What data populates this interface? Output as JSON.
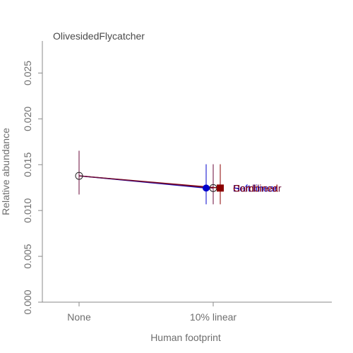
{
  "chart_data": {
    "type": "scatter",
    "title": "OlivesidedFlycatcher",
    "xlabel": "Human footprint",
    "ylabel": "Relative abundance",
    "categories": [
      "None",
      "10% linear"
    ],
    "ylim": [
      0,
      0.0285
    ],
    "yticks": [
      "0.000",
      "0.005",
      "0.010",
      "0.015",
      "0.020",
      "0.025"
    ],
    "series": [
      {
        "name": "Hard linear",
        "color": "#6a0a3a",
        "marker": "open-circle",
        "points": [
          {
            "category": "None",
            "y": 0.01378,
            "lo": 0.01175,
            "hi": 0.01652
          },
          {
            "category": "10% linear",
            "y": 0.01245,
            "lo": 0.01068,
            "hi": 0.01505,
            "offset": 0
          }
        ]
      },
      {
        "name": "Soft linear",
        "color": "#0000cc",
        "marker": "filled-circle",
        "points": [
          {
            "category": "10% linear",
            "y": 0.01245,
            "lo": 0.01068,
            "hi": 0.01505,
            "offset": -0.1
          }
        ]
      },
      {
        "name": "Combined",
        "color": "#8b0000",
        "marker": "filled-square",
        "points": [
          {
            "category": "10% linear",
            "y": 0.01245,
            "lo": 0.01068,
            "hi": 0.01505,
            "offset": 0.1
          }
        ]
      }
    ]
  }
}
